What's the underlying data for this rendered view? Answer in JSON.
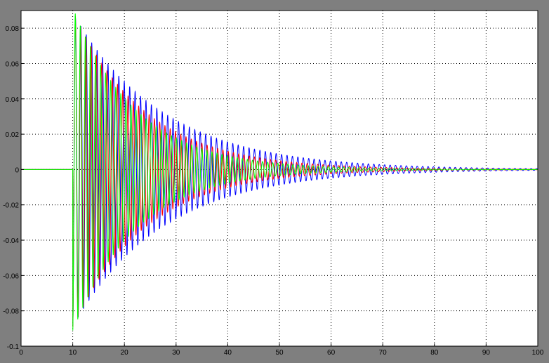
{
  "window": {
    "background": "#7f7f7f",
    "plot_background": "#ffffff",
    "grid_color": "#000000"
  },
  "chart_data": {
    "type": "line",
    "title": "",
    "xlabel": "",
    "ylabel": "",
    "xlim": [
      0,
      100
    ],
    "ylim": [
      -0.1,
      0.09
    ],
    "xticks": [
      0,
      10,
      20,
      30,
      40,
      50,
      60,
      70,
      80,
      90,
      100
    ],
    "yticks": [
      -0.1,
      -0.08,
      -0.06,
      -0.04,
      -0.02,
      0,
      0.02,
      0.04,
      0.06,
      0.08
    ],
    "x_tick_labels": [
      "0",
      "10",
      "20",
      "30",
      "40",
      "50",
      "60",
      "70",
      "80",
      "90",
      "100"
    ],
    "y_tick_labels": [
      "-0.1",
      "-0.08",
      "-0.06",
      "-0.04",
      "-0.02",
      "0",
      "0.02",
      "0.04",
      "0.06",
      "0.08"
    ],
    "grid": true,
    "legend": "none",
    "series": [
      {
        "color": "#0000ff",
        "step_time": 10,
        "initial_amplitude": 0.08,
        "first_trough": -0.089,
        "period": 1.05,
        "decay_rate": 0.058,
        "envelope_points": [
          [
            10.5,
            0.08
          ],
          [
            20,
            0.044
          ],
          [
            30,
            0.024
          ],
          [
            40,
            0.011
          ],
          [
            50,
            0.004
          ],
          [
            60,
            0.0015
          ],
          [
            70,
            0.0007
          ],
          [
            100,
            0.0004
          ]
        ]
      },
      {
        "color": "#ff0000",
        "step_time": 10,
        "initial_amplitude": 0.081,
        "first_trough": -0.09,
        "period": 1.02,
        "decay_rate": 0.072,
        "envelope_points": [
          [
            10.5,
            0.081
          ],
          [
            20,
            0.036
          ],
          [
            30,
            0.017
          ],
          [
            40,
            0.007
          ],
          [
            50,
            0.002
          ],
          [
            60,
            0.001
          ],
          [
            100,
            0.0003
          ]
        ]
      },
      {
        "color": "#00ff00",
        "step_time": 10,
        "initial_amplitude": 0.081,
        "first_trough": -0.092,
        "period": 0.98,
        "decay_rate": 0.082,
        "envelope_points": [
          [
            10.5,
            0.081
          ],
          [
            20,
            0.032
          ],
          [
            30,
            0.014
          ],
          [
            40,
            0.005
          ],
          [
            50,
            0.0015
          ],
          [
            60,
            0.0006
          ],
          [
            100,
            0.0002
          ]
        ]
      }
    ]
  }
}
